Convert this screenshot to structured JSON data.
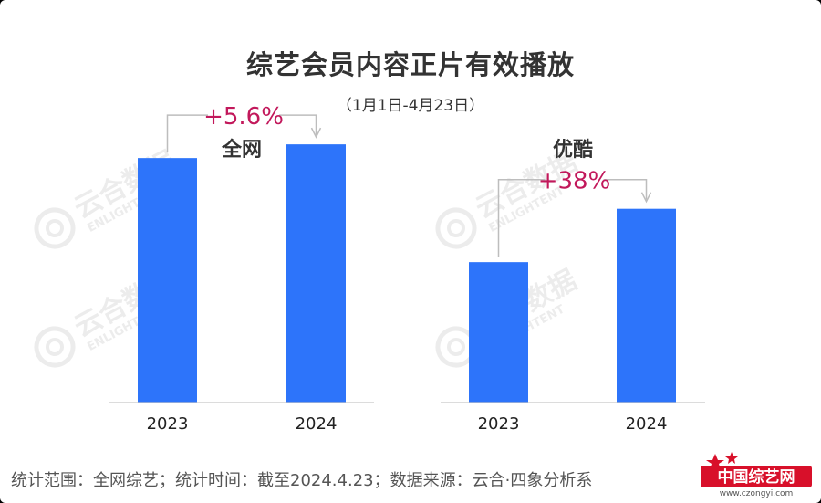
{
  "title": "综艺会员内容正片有效播放",
  "subtitle": "（1月1日-4月23日）",
  "footnote": "统计范围：全网综艺；统计时间：截至2024.4.23；数据来源：云合·四象分析系",
  "brand": "中国综艺网",
  "brand_url": "www.czongyi.com",
  "watermark": [
    "云合数据",
    "ENLIGHTENT"
  ],
  "colors": {
    "bar": "#2d74fa",
    "annotation": "#c2185b",
    "connector": "#bdbdbd",
    "brand_red": "#d8102a"
  },
  "chart_data": [
    {
      "type": "bar",
      "title": "全网",
      "categories": [
        "2023",
        "2024"
      ],
      "values": [
        100,
        105.6
      ],
      "change_label": "+5.6%",
      "ylim": [
        0,
        112
      ],
      "grid": false
    },
    {
      "type": "bar",
      "title": "优酷",
      "categories": [
        "2023",
        "2024"
      ],
      "values": [
        100,
        138
      ],
      "change_label": "+38%",
      "ylim": [
        0,
        195
      ],
      "grid": false
    }
  ]
}
